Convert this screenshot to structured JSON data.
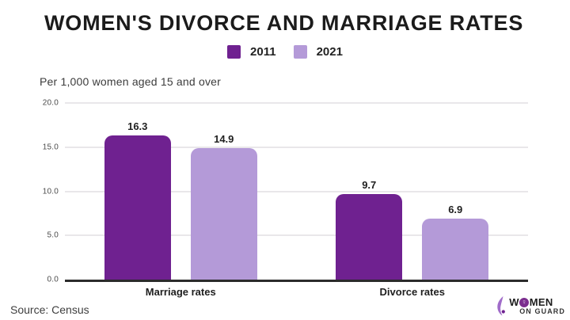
{
  "title": "WOMEN'S DIVORCE AND MARRIAGE RATES",
  "subtitle": "Per 1,000 women aged 15 and over",
  "source": "Source: Census",
  "colors": {
    "series_2011": "#6f2190",
    "series_2021": "#b49ad8",
    "title_text": "#1b1b1b",
    "axis_line": "#2b2b2b",
    "gridline": "#e9e7ea",
    "logo_circle": "#7b2d8e"
  },
  "chart_data": {
    "type": "bar",
    "title": "WOMEN'S DIVORCE AND MARRIAGE RATES",
    "subtitle": "Per 1,000 women aged 15 and over",
    "categories": [
      "Marriage rates",
      "Divorce rates"
    ],
    "series": [
      {
        "name": "2011",
        "color": "#6f2190",
        "values": [
          16.3,
          9.7
        ]
      },
      {
        "name": "2021",
        "color": "#b49ad8",
        "values": [
          14.9,
          6.9
        ]
      }
    ],
    "ylim": [
      0,
      20
    ],
    "yticks": [
      0,
      5,
      10,
      15,
      20
    ],
    "ytick_labels": [
      "0.0",
      "5.0",
      "10.0",
      "15.0",
      "20.0"
    ],
    "grid": true,
    "legend_position": "top-center",
    "xlabel": "",
    "ylabel": "Per 1,000 women aged 15 and over"
  },
  "logo": {
    "brand_line1_prefix": "W",
    "brand_line1_suffix": "MEN",
    "female_symbol": "♀",
    "brand_line2": "ON GUARD"
  }
}
